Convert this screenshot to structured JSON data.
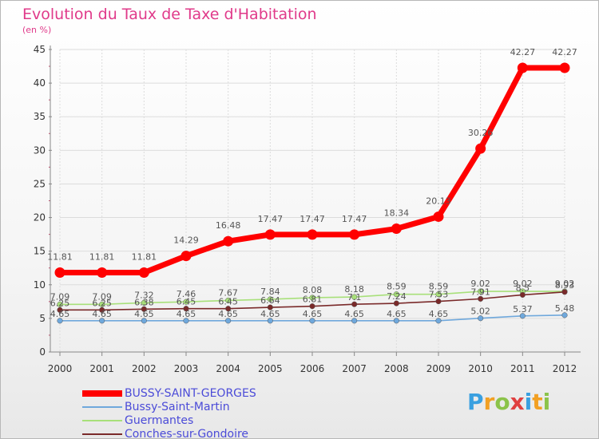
{
  "chart_data": {
    "type": "line",
    "title": "Evolution du Taux de Taxe d'Habitation",
    "subtitle": "(en %)",
    "categories": [
      "2000",
      "2001",
      "2002",
      "2003",
      "2004",
      "2005",
      "2006",
      "2007",
      "2008",
      "2009",
      "2010",
      "2011",
      "2012"
    ],
    "ylim": [
      0,
      45
    ],
    "yticks": [
      "0",
      "5",
      "10",
      "15",
      "20",
      "25",
      "30",
      "35",
      "40",
      "45"
    ],
    "grid": true,
    "legend_position": "bottom-left",
    "series": [
      {
        "name": "BUSSY-SAINT-GEORGES",
        "color": "#ff0000",
        "values": [
          11.81,
          11.81,
          11.81,
          14.29,
          16.48,
          17.47,
          17.47,
          17.47,
          18.34,
          20.13,
          30.26,
          42.27,
          42.27
        ],
        "labels": [
          "11.81",
          "11.81",
          "11.81",
          "14.29",
          "16.48",
          "17.47",
          "17.47",
          "17.47",
          "18.34",
          "20.13",
          "30.26",
          "42.27",
          "42.27"
        ]
      },
      {
        "name": "Bussy-Saint-Martin",
        "color": "#6fa8dc",
        "values": [
          4.65,
          4.65,
          4.65,
          4.65,
          4.65,
          4.65,
          4.65,
          4.65,
          4.65,
          4.65,
          5.02,
          5.37,
          5.48
        ],
        "labels": [
          "4.65",
          "4.65",
          "4.65",
          "4.65",
          "4.65",
          "4.65",
          "4.65",
          "4.65",
          "4.65",
          "4.65",
          "5.02",
          "5.37",
          "5.48"
        ]
      },
      {
        "name": "Guermantes",
        "color": "#a8e07a",
        "values": [
          7.09,
          7.09,
          7.32,
          7.46,
          7.67,
          7.84,
          8.08,
          8.18,
          8.59,
          8.59,
          9.02,
          9.02,
          9.02
        ],
        "labels": [
          "7.09",
          "7.09",
          "7.32",
          "7.46",
          "7.67",
          "7.84",
          "8.08",
          "8.18",
          "8.59",
          "8.59",
          "9.02",
          "9.02",
          "9.02"
        ]
      },
      {
        "name": "Conches-sur-Gondoire",
        "color": "#7a2a2a",
        "values": [
          6.25,
          6.25,
          6.38,
          6.45,
          6.45,
          6.64,
          6.81,
          7.1,
          7.24,
          7.53,
          7.91,
          8.5,
          8.93
        ],
        "labels": [
          "6.25",
          "6.25",
          "6.38",
          "6.45",
          "6.45",
          "6.64",
          "6.81",
          "7.1",
          "7.24",
          "7.53",
          "7.91",
          "8.5",
          "8.93"
        ]
      }
    ]
  },
  "branding": {
    "logo_letters": [
      "P",
      "r",
      "o",
      "x",
      "i",
      "t",
      "i"
    ],
    "logo_colors": [
      "#3aa0e0",
      "#f2a023",
      "#8bc34a",
      "#e04040",
      "#3aa0e0",
      "#f2a023",
      "#8bc34a"
    ]
  }
}
